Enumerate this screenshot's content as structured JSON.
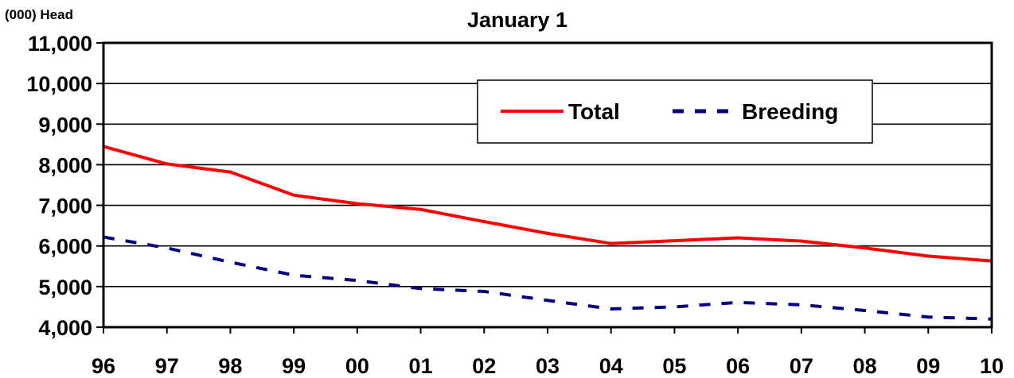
{
  "chart_data": {
    "type": "line",
    "title": "January 1",
    "ylabel": "(000) Head",
    "xlabel": "",
    "categories": [
      "96",
      "97",
      "98",
      "99",
      "00",
      "01",
      "02",
      "03",
      "04",
      "05",
      "06",
      "07",
      "08",
      "09",
      "10"
    ],
    "ylim": [
      4000,
      11000
    ],
    "yticks": [
      4000,
      5000,
      6000,
      7000,
      8000,
      9000,
      10000,
      11000
    ],
    "ytick_labels": [
      "4,000",
      "5,000",
      "6,000",
      "7,000",
      "8,000",
      "9,000",
      "10,000",
      "11,000"
    ],
    "grid": true,
    "legend_position": "top-right",
    "series": [
      {
        "name": "Total",
        "color": "#ff0000",
        "style": "solid",
        "values": [
          8450,
          8020,
          7820,
          7250,
          7040,
          6900,
          6600,
          6310,
          6060,
          6130,
          6200,
          6120,
          5950,
          5750,
          5630
        ]
      },
      {
        "name": "Breeding",
        "color": "#000080",
        "style": "dashed",
        "values": [
          6220,
          5950,
          5600,
          5280,
          5150,
          4950,
          4880,
          4660,
          4450,
          4500,
          4610,
          4550,
          4410,
          4250,
          4200
        ]
      }
    ]
  }
}
